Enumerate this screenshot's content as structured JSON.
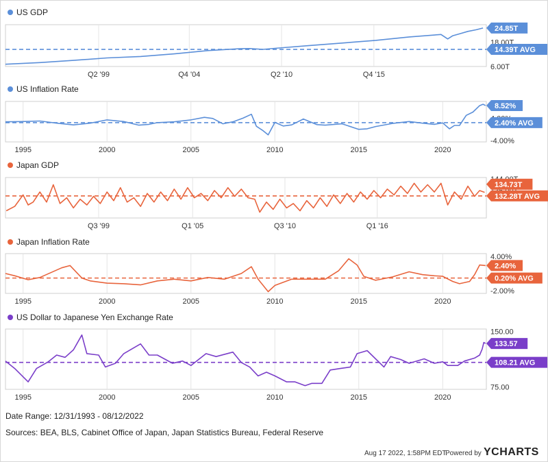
{
  "footer": {
    "date_range": "Date Range: 12/31/1993 - 08/12/2022",
    "sources": "Sources: BEA, BLS, Cabinet Office of Japan, Japan Statistics Bureau, Federal Reserve",
    "timestamp": "Aug 17 2022, 1:58PM EDT.",
    "powered_by": "Powered by",
    "logo": "YCHARTS"
  },
  "colors": {
    "blue": "#5b8fd9",
    "orange": "#e8643c",
    "purple": "#7a3ec9"
  },
  "chart_data": [
    {
      "type": "line",
      "title": "US GDP",
      "color": "#5b8fd9",
      "x_range": [
        1993.95,
        2022.6
      ],
      "ylim": [
        6.0,
        26.5
      ],
      "y_ticks": [
        {
          "v": 18,
          "label": "18.00T"
        },
        {
          "v": 6,
          "label": "6.00T"
        }
      ],
      "x_ticks": [
        {
          "v": 1999.5,
          "label": "Q2 '99"
        },
        {
          "v": 2004.9,
          "label": "Q4 '04"
        },
        {
          "v": 2010.4,
          "label": "Q2 '10"
        },
        {
          "v": 2015.9,
          "label": "Q4 '15"
        }
      ],
      "last": {
        "value": 24.85,
        "label": "24.85T"
      },
      "avg": {
        "value": 14.39,
        "label": "14.39T AVG"
      },
      "points": [
        [
          1993.95,
          7.1
        ],
        [
          1996,
          7.9
        ],
        [
          1998,
          9.0
        ],
        [
          2000,
          10.2
        ],
        [
          2002,
          10.9
        ],
        [
          2004,
          12.2
        ],
        [
          2006,
          13.8
        ],
        [
          2007.9,
          14.7
        ],
        [
          2008.5,
          14.8
        ],
        [
          2009.3,
          14.4
        ],
        [
          2010,
          14.9
        ],
        [
          2012,
          16.2
        ],
        [
          2014,
          17.5
        ],
        [
          2016,
          18.8
        ],
        [
          2018,
          20.5
        ],
        [
          2019.9,
          21.7
        ],
        [
          2020.3,
          19.5
        ],
        [
          2020.6,
          21.1
        ],
        [
          2021,
          22.0
        ],
        [
          2021.5,
          23.2
        ],
        [
          2022,
          24.0
        ],
        [
          2022.4,
          24.85
        ]
      ]
    },
    {
      "type": "line",
      "title": "US Inflation Rate",
      "color": "#5b8fd9",
      "x_range": [
        1993.95,
        2022.6
      ],
      "ylim": [
        -4.5,
        10.0
      ],
      "y_ticks": [
        {
          "v": 4,
          "label": "4.00%"
        },
        {
          "v": -4,
          "label": "-4.00%"
        }
      ],
      "x_ticks": [
        {
          "v": 1995,
          "label": "1995"
        },
        {
          "v": 2000,
          "label": "2000"
        },
        {
          "v": 2005,
          "label": "2005"
        },
        {
          "v": 2010,
          "label": "2010"
        },
        {
          "v": 2015,
          "label": "2015"
        },
        {
          "v": 2020,
          "label": "2020"
        }
      ],
      "last": {
        "value": 8.52,
        "label": "8.52%"
      },
      "avg": {
        "value": 2.4,
        "label": "2.40% AVG"
      },
      "points": [
        [
          1993.95,
          2.7
        ],
        [
          1995,
          2.8
        ],
        [
          1996,
          3.0
        ],
        [
          1997,
          2.2
        ],
        [
          1998,
          1.6
        ],
        [
          1999,
          2.2
        ],
        [
          2000,
          3.4
        ],
        [
          2001,
          2.8
        ],
        [
          2001.9,
          1.5
        ],
        [
          2002.5,
          1.8
        ],
        [
          2003,
          2.4
        ],
        [
          2004,
          2.7
        ],
        [
          2005,
          3.4
        ],
        [
          2005.8,
          4.3
        ],
        [
          2006.3,
          3.9
        ],
        [
          2006.9,
          2.0
        ],
        [
          2007.5,
          2.7
        ],
        [
          2008.1,
          4.0
        ],
        [
          2008.6,
          5.4
        ],
        [
          2008.9,
          1.1
        ],
        [
          2009.3,
          -0.5
        ],
        [
          2009.6,
          -2.0
        ],
        [
          2010.0,
          2.5
        ],
        [
          2010.5,
          1.2
        ],
        [
          2011.0,
          1.6
        ],
        [
          2011.7,
          3.7
        ],
        [
          2012.5,
          1.7
        ],
        [
          2013,
          1.5
        ],
        [
          2014,
          2.0
        ],
        [
          2015,
          0.0
        ],
        [
          2015.5,
          0.2
        ],
        [
          2016,
          1.0
        ],
        [
          2017,
          2.1
        ],
        [
          2018,
          2.8
        ],
        [
          2018.8,
          2.2
        ],
        [
          2019.5,
          1.8
        ],
        [
          2020,
          2.3
        ],
        [
          2020.4,
          0.2
        ],
        [
          2020.7,
          1.4
        ],
        [
          2021,
          1.4
        ],
        [
          2021.4,
          5.0
        ],
        [
          2021.8,
          6.2
        ],
        [
          2022.2,
          8.5
        ],
        [
          2022.4,
          9.0
        ],
        [
          2022.55,
          8.52
        ]
      ]
    },
    {
      "type": "line",
      "title": "Japan GDP",
      "color": "#e8643c",
      "x_range": [
        1993.95,
        2022.6
      ],
      "ylim": [
        117.0,
        145.0
      ],
      "y_ticks": [
        {
          "v": 144,
          "label": "144.00T"
        },
        {
          "v": 136,
          "label": "136.00T"
        }
      ],
      "x_ticks": [
        {
          "v": 1999.5,
          "label": "Q3 '99"
        },
        {
          "v": 2005.1,
          "label": "Q1 '05"
        },
        {
          "v": 2010.6,
          "label": "Q3 '10"
        },
        {
          "v": 2016.1,
          "label": "Q1 '16"
        }
      ],
      "last": {
        "value": 134.73,
        "label": "134.73T"
      },
      "avg": {
        "value": 132.28,
        "label": "132.28T AVG"
      },
      "points": [
        [
          1994,
          122
        ],
        [
          1994.5,
          125
        ],
        [
          1995,
          133
        ],
        [
          1995.3,
          126
        ],
        [
          1995.6,
          128
        ],
        [
          1996,
          135
        ],
        [
          1996.4,
          128
        ],
        [
          1996.8,
          140
        ],
        [
          1997.2,
          127
        ],
        [
          1997.6,
          131
        ],
        [
          1998,
          124
        ],
        [
          1998.4,
          130
        ],
        [
          1998.8,
          126
        ],
        [
          1999.2,
          132
        ],
        [
          1999.6,
          127
        ],
        [
          2000,
          135
        ],
        [
          2000.4,
          129
        ],
        [
          2000.8,
          138
        ],
        [
          2001.2,
          128
        ],
        [
          2001.6,
          131
        ],
        [
          2002,
          125
        ],
        [
          2002.4,
          134
        ],
        [
          2002.8,
          128
        ],
        [
          2003.2,
          135
        ],
        [
          2003.6,
          129
        ],
        [
          2004,
          137
        ],
        [
          2004.4,
          130
        ],
        [
          2004.8,
          138
        ],
        [
          2005.2,
          131
        ],
        [
          2005.6,
          134
        ],
        [
          2006,
          129
        ],
        [
          2006.4,
          136
        ],
        [
          2006.8,
          131
        ],
        [
          2007.2,
          138
        ],
        [
          2007.6,
          132
        ],
        [
          2008,
          137
        ],
        [
          2008.4,
          131
        ],
        [
          2008.8,
          130
        ],
        [
          2009.1,
          121
        ],
        [
          2009.5,
          128
        ],
        [
          2009.9,
          123
        ],
        [
          2010.3,
          130
        ],
        [
          2010.7,
          124
        ],
        [
          2011.1,
          127
        ],
        [
          2011.5,
          122
        ],
        [
          2011.9,
          129
        ],
        [
          2012.3,
          124
        ],
        [
          2012.7,
          131
        ],
        [
          2013.1,
          125
        ],
        [
          2013.5,
          133
        ],
        [
          2013.9,
          127
        ],
        [
          2014.3,
          134
        ],
        [
          2014.7,
          128
        ],
        [
          2015.1,
          135
        ],
        [
          2015.5,
          130
        ],
        [
          2015.9,
          136
        ],
        [
          2016.3,
          131
        ],
        [
          2016.7,
          137
        ],
        [
          2017.1,
          133
        ],
        [
          2017.5,
          139
        ],
        [
          2017.9,
          134
        ],
        [
          2018.3,
          141
        ],
        [
          2018.7,
          135
        ],
        [
          2019.1,
          140
        ],
        [
          2019.5,
          135
        ],
        [
          2019.9,
          141
        ],
        [
          2020.3,
          126
        ],
        [
          2020.7,
          135
        ],
        [
          2021.1,
          130
        ],
        [
          2021.5,
          139
        ],
        [
          2021.9,
          132
        ],
        [
          2022.2,
          136
        ],
        [
          2022.5,
          134.73
        ]
      ]
    },
    {
      "type": "line",
      "title": "Japan Inflation Rate",
      "color": "#e8643c",
      "x_range": [
        1993.95,
        2022.6
      ],
      "ylim": [
        -2.5,
        4.5
      ],
      "y_ticks": [
        {
          "v": 4,
          "label": "4.00%"
        },
        {
          "v": -2,
          "label": "-2.00%"
        }
      ],
      "x_ticks": [
        {
          "v": 1995,
          "label": "1995"
        },
        {
          "v": 2000,
          "label": "2000"
        },
        {
          "v": 2005,
          "label": "2005"
        },
        {
          "v": 2010,
          "label": "2010"
        },
        {
          "v": 2015,
          "label": "2015"
        },
        {
          "v": 2020,
          "label": "2020"
        }
      ],
      "last": {
        "value": 2.4,
        "label": "2.40%"
      },
      "avg": {
        "value": 0.2,
        "label": "0.20% AVG"
      },
      "points": [
        [
          1993.95,
          1.0
        ],
        [
          1994.5,
          0.6
        ],
        [
          1995.3,
          -0.1
        ],
        [
          1996,
          0.3
        ],
        [
          1997.3,
          2.0
        ],
        [
          1997.8,
          2.4
        ],
        [
          1998.5,
          0.2
        ],
        [
          1999,
          -0.3
        ],
        [
          2000,
          -0.7
        ],
        [
          2001,
          -0.8
        ],
        [
          2002,
          -1.0
        ],
        [
          2003,
          -0.3
        ],
        [
          2004,
          0.0
        ],
        [
          2005,
          -0.3
        ],
        [
          2006,
          0.3
        ],
        [
          2007,
          0.0
        ],
        [
          2008,
          1.0
        ],
        [
          2008.6,
          2.2
        ],
        [
          2009,
          0.0
        ],
        [
          2009.6,
          -2.2
        ],
        [
          2010,
          -1.1
        ],
        [
          2011,
          0.0
        ],
        [
          2012,
          0.0
        ],
        [
          2013,
          0.0
        ],
        [
          2013.8,
          1.5
        ],
        [
          2014.4,
          3.6
        ],
        [
          2014.9,
          2.5
        ],
        [
          2015.3,
          0.5
        ],
        [
          2016,
          -0.2
        ],
        [
          2017,
          0.4
        ],
        [
          2018,
          1.3
        ],
        [
          2018.8,
          0.8
        ],
        [
          2019.5,
          0.6
        ],
        [
          2020,
          0.5
        ],
        [
          2020.6,
          -0.4
        ],
        [
          2021,
          -0.8
        ],
        [
          2021.6,
          -0.4
        ],
        [
          2021.9,
          0.8
        ],
        [
          2022.2,
          2.5
        ],
        [
          2022.55,
          2.4
        ]
      ]
    },
    {
      "type": "line",
      "title": "US Dollar to Japanese Yen Exchange Rate",
      "color": "#7a3ec9",
      "x_range": [
        1993.95,
        2022.6
      ],
      "ylim": [
        72.0,
        153.0
      ],
      "y_ticks": [
        {
          "v": 150,
          "label": "150.00"
        },
        {
          "v": 75,
          "label": "75.00"
        }
      ],
      "x_ticks": [
        {
          "v": 1995,
          "label": "1995"
        },
        {
          "v": 2000,
          "label": "2000"
        },
        {
          "v": 2005,
          "label": "2005"
        },
        {
          "v": 2010,
          "label": "2010"
        },
        {
          "v": 2015,
          "label": "2015"
        },
        {
          "v": 2020,
          "label": "2020"
        }
      ],
      "last": {
        "value": 133.57,
        "label": "133.57"
      },
      "avg": {
        "value": 108.21,
        "label": "108.21 AVG"
      },
      "points": [
        [
          1993.95,
          110
        ],
        [
          1994.5,
          100
        ],
        [
          1995.3,
          82
        ],
        [
          1995.8,
          100
        ],
        [
          1996.5,
          109
        ],
        [
          1997,
          118
        ],
        [
          1997.5,
          115
        ],
        [
          1998,
          125
        ],
        [
          1998.5,
          145
        ],
        [
          1998.8,
          120
        ],
        [
          1999.5,
          118
        ],
        [
          1999.9,
          102
        ],
        [
          2000.5,
          107
        ],
        [
          2001,
          120
        ],
        [
          2002,
          133
        ],
        [
          2002.5,
          118
        ],
        [
          2003,
          118
        ],
        [
          2003.9,
          107
        ],
        [
          2004.5,
          110
        ],
        [
          2005,
          104
        ],
        [
          2005.9,
          120
        ],
        [
          2006.5,
          116
        ],
        [
          2007.5,
          122
        ],
        [
          2008,
          108
        ],
        [
          2008.5,
          102
        ],
        [
          2009,
          90
        ],
        [
          2009.5,
          95
        ],
        [
          2010,
          90
        ],
        [
          2010.7,
          82
        ],
        [
          2011.2,
          82
        ],
        [
          2011.8,
          77
        ],
        [
          2012.2,
          80
        ],
        [
          2012.8,
          80
        ],
        [
          2013.3,
          98
        ],
        [
          2013.9,
          100
        ],
        [
          2014.5,
          102
        ],
        [
          2014.9,
          120
        ],
        [
          2015.5,
          124
        ],
        [
          2016,
          113
        ],
        [
          2016.5,
          102
        ],
        [
          2016.9,
          116
        ],
        [
          2017.5,
          112
        ],
        [
          2018,
          107
        ],
        [
          2018.9,
          113
        ],
        [
          2019.5,
          107
        ],
        [
          2020,
          109
        ],
        [
          2020.3,
          104
        ],
        [
          2020.9,
          104
        ],
        [
          2021.3,
          110
        ],
        [
          2021.9,
          114
        ],
        [
          2022.2,
          118
        ],
        [
          2022.35,
          126
        ],
        [
          2022.45,
          135
        ],
        [
          2022.55,
          133.57
        ]
      ]
    }
  ]
}
